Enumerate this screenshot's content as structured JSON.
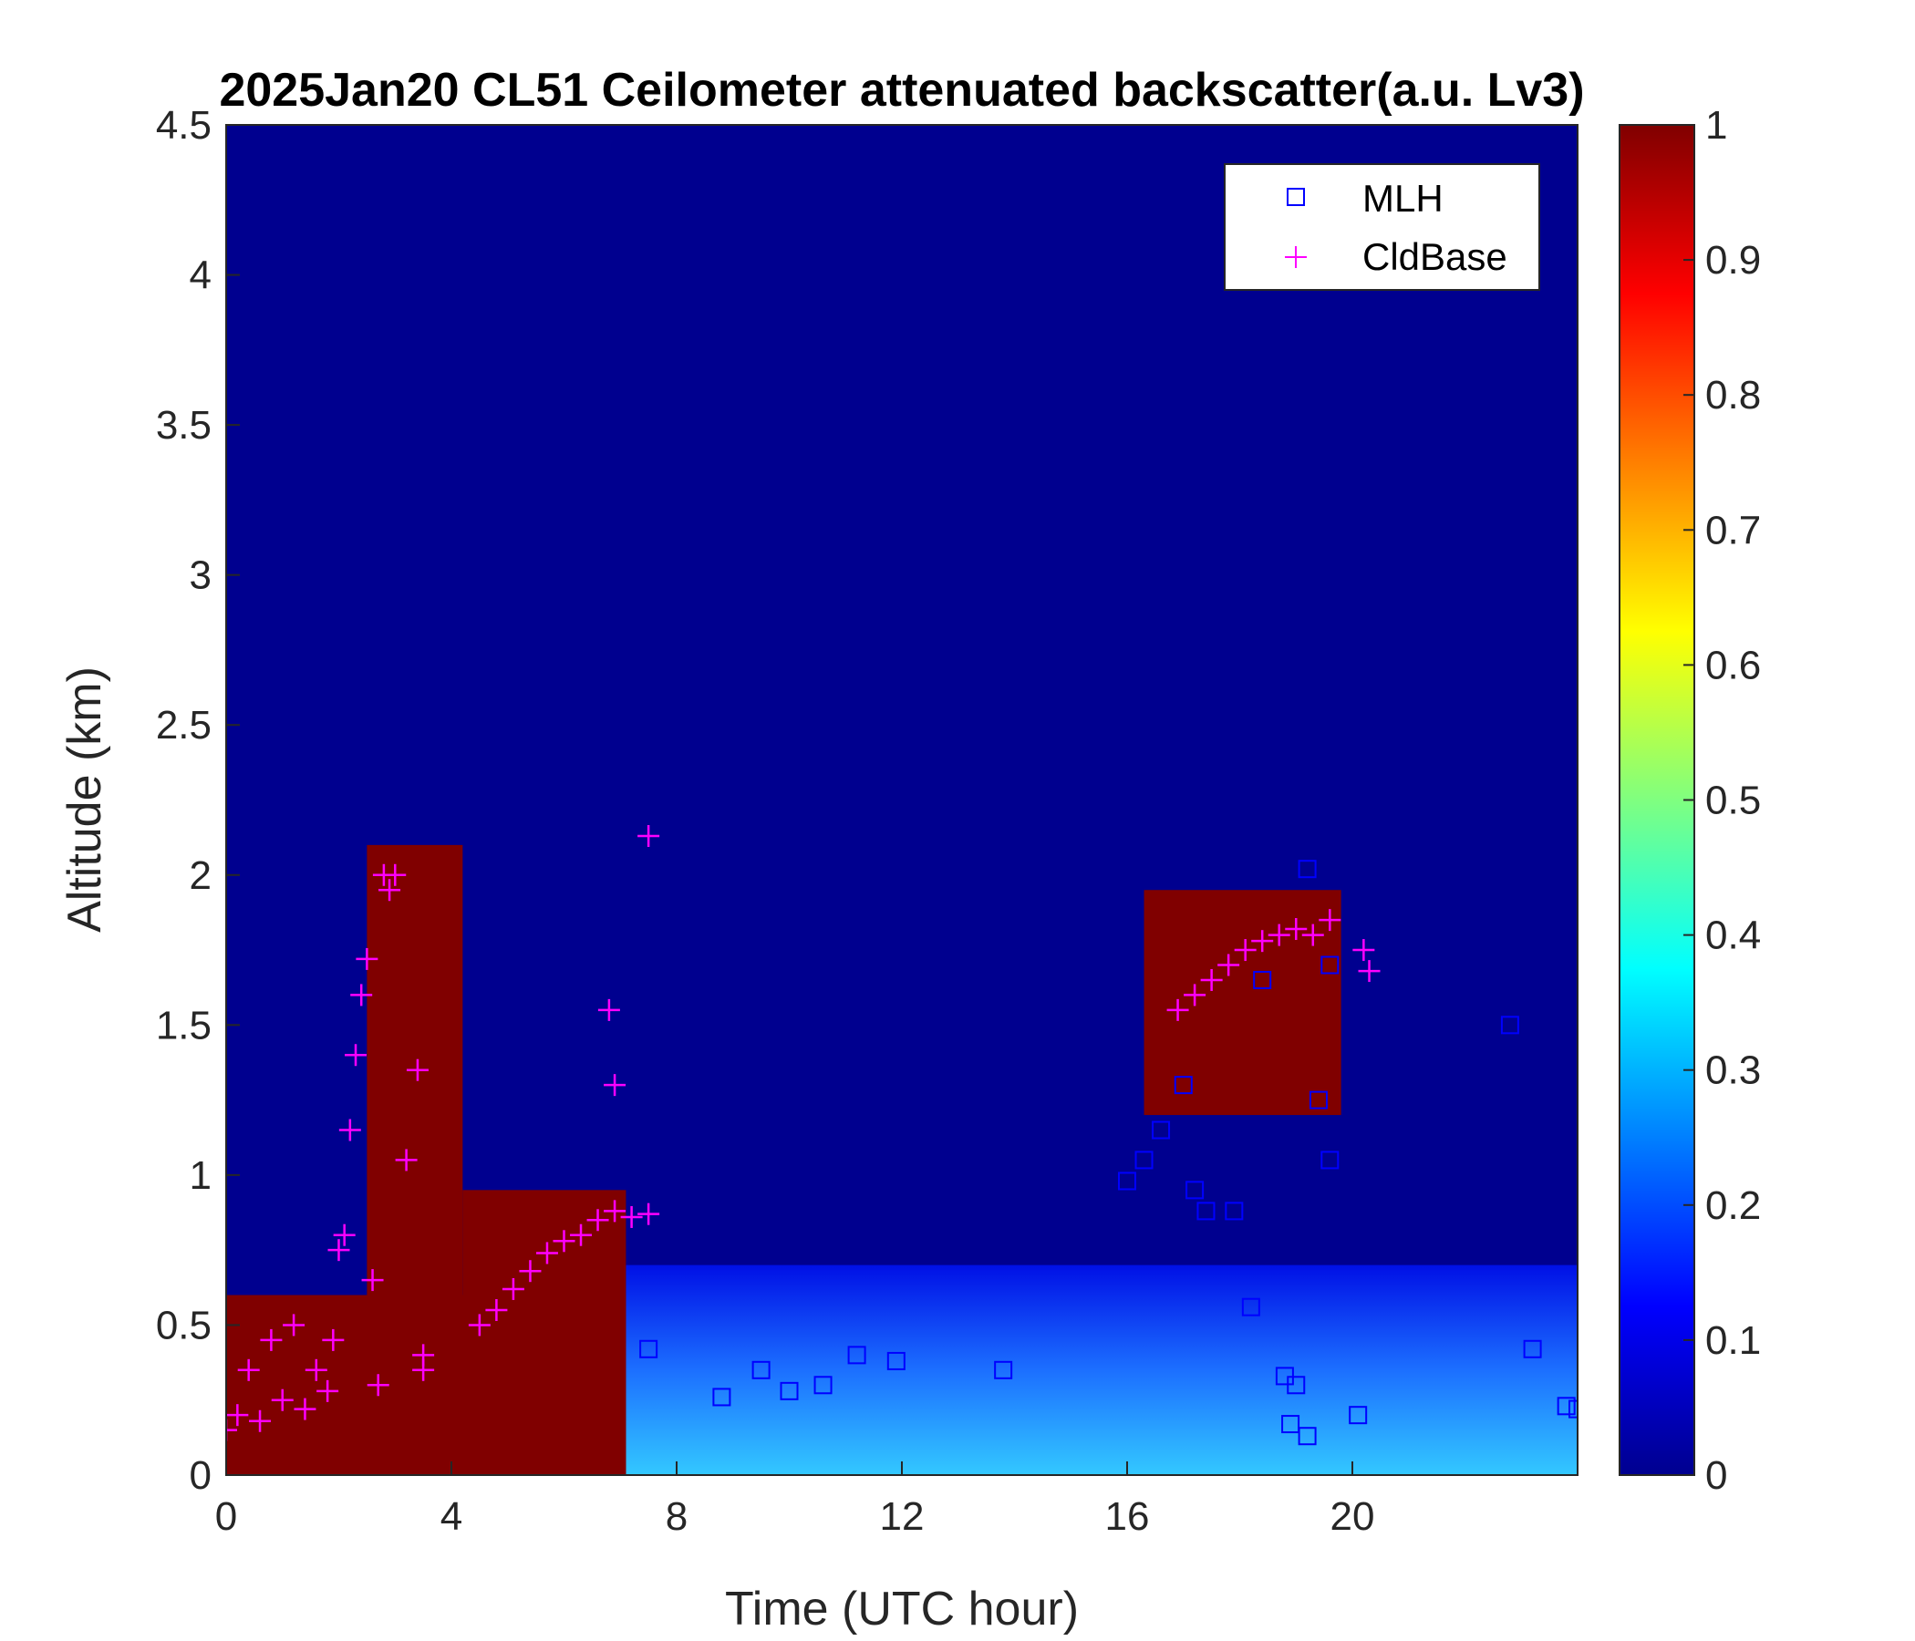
{
  "chart_data": {
    "type": "heatmap",
    "title": "2025Jan20 CL51 Ceilometer attenuated backscatter(a.u. Lv3)",
    "xlabel": "Time (UTC hour)",
    "ylabel": "Altitude (km)",
    "xlim": [
      0,
      24
    ],
    "ylim": [
      0,
      4.5
    ],
    "xticks": [
      0,
      4,
      8,
      12,
      16,
      20
    ],
    "xtick_labels": [
      "0",
      "4",
      "8",
      "12",
      "16",
      "20"
    ],
    "yticks": [
      0,
      0.5,
      1,
      1.5,
      2,
      2.5,
      3,
      3.5,
      4,
      4.5
    ],
    "ytick_labels": [
      "0",
      "0.5",
      "1",
      "1.5",
      "2",
      "2.5",
      "3",
      "3.5",
      "4",
      "4.5"
    ],
    "colorbar": {
      "colormap": "jet",
      "range": [
        0,
        1
      ],
      "ticks": [
        0,
        0.1,
        0.2,
        0.3,
        0.4,
        0.5,
        0.6,
        0.7,
        0.8,
        0.9,
        1
      ],
      "tick_labels": [
        "0",
        "0.1",
        "0.2",
        "0.3",
        "0.4",
        "0.5",
        "0.6",
        "0.7",
        "0.8",
        "0.9",
        "1"
      ]
    },
    "legend": {
      "location": "top-right",
      "entries": [
        {
          "label": "MLH",
          "marker": "square",
          "color": "#0000ff"
        },
        {
          "label": "CldBase",
          "marker": "plus",
          "color": "#ff00ff"
        }
      ]
    },
    "field_regions": [
      {
        "feature": "aerosol-layer",
        "x0": 7.1,
        "x1": 24,
        "y0": 0,
        "ymax": 0.7,
        "value": 0.28
      },
      {
        "feature": "surface-aerosol",
        "x0": 0,
        "x1": 7.1,
        "y0": 0,
        "ymax": 0.6,
        "value": 1.0
      },
      {
        "feature": "cloud-main",
        "x0": 4.2,
        "x1": 7.1,
        "y0": 0,
        "ymax": 0.95,
        "value": 1.0
      },
      {
        "feature": "cloud-tower",
        "x0": 2.5,
        "x1": 4.2,
        "y0": 0,
        "ymax": 2.1,
        "value": 1.0
      },
      {
        "feature": "cloud-afternoon",
        "x0": 16.3,
        "x1": 19.8,
        "y0": 1.2,
        "ymax": 1.95,
        "value": 1.0
      }
    ],
    "series": [
      {
        "name": "MLH",
        "marker": "square",
        "color": "#0000ff",
        "x": [
          7.5,
          8.8,
          9.5,
          10.0,
          10.6,
          11.2,
          11.9,
          13.8,
          16.0,
          16.3,
          16.6,
          17.0,
          17.2,
          17.4,
          17.9,
          18.2,
          18.4,
          18.8,
          19.0,
          19.2,
          19.4,
          19.6,
          19.6,
          18.9,
          19.2,
          20.1,
          22.8,
          23.2,
          23.8,
          24.0
        ],
        "y": [
          0.42,
          0.26,
          0.35,
          0.28,
          0.3,
          0.4,
          0.38,
          0.35,
          0.98,
          1.05,
          1.15,
          1.3,
          0.95,
          0.88,
          0.88,
          0.56,
          1.65,
          0.33,
          0.3,
          0.13,
          1.25,
          1.05,
          1.7,
          0.17,
          2.02,
          0.2,
          1.5,
          0.42,
          0.23,
          0.22
        ]
      },
      {
        "name": "CldBase",
        "marker": "plus",
        "color": "#ff00ff",
        "x": [
          0.0,
          0.2,
          0.4,
          0.6,
          0.8,
          1.0,
          1.2,
          1.4,
          1.6,
          1.8,
          2.0,
          2.2,
          2.4,
          2.5,
          2.6,
          2.8,
          2.9,
          3.0,
          3.2,
          3.4,
          3.5,
          2.3,
          2.1,
          1.9,
          2.7,
          3.5,
          4.5,
          4.8,
          5.1,
          5.4,
          5.7,
          6.0,
          6.3,
          6.6,
          6.9,
          7.2,
          7.5,
          6.9,
          6.8,
          7.5,
          16.9,
          17.2,
          17.5,
          17.8,
          18.1,
          18.4,
          18.7,
          19.0,
          19.3,
          19.6,
          20.2,
          20.3
        ],
        "y": [
          0.15,
          0.2,
          0.35,
          0.18,
          0.45,
          0.25,
          0.5,
          0.22,
          0.35,
          0.28,
          0.75,
          1.15,
          1.6,
          1.72,
          0.65,
          2.0,
          1.95,
          2.0,
          1.05,
          1.35,
          0.4,
          1.4,
          0.8,
          0.45,
          0.3,
          0.35,
          0.5,
          0.55,
          0.62,
          0.68,
          0.74,
          0.78,
          0.8,
          0.85,
          0.88,
          0.86,
          0.87,
          1.3,
          1.55,
          2.13,
          1.55,
          1.6,
          1.65,
          1.7,
          1.75,
          1.78,
          1.8,
          1.82,
          1.8,
          1.85,
          1.75,
          1.68
        ]
      }
    ]
  }
}
